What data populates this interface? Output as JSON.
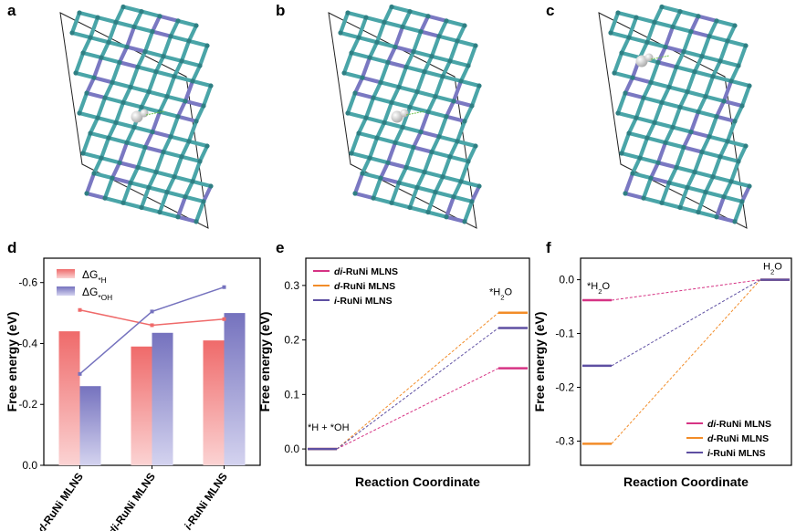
{
  "panels": {
    "a": "a",
    "b": "b",
    "c": "c",
    "d": "d",
    "e": "e",
    "f": "f"
  },
  "colors": {
    "teal": "#4aa5a8",
    "teal_dark": "#2f7f83",
    "purple": "#7a78c2",
    "white_atom": "#e6e6e6",
    "red_bar": "#ef6a6a",
    "blue_bar": "#7572be",
    "pink": "#d63384",
    "orange": "#f28c28",
    "violet": "#5e4fa2"
  },
  "chart_data": [
    {
      "type": "bar",
      "panel": "d",
      "categories": [
        "d-RuNi MLNS",
        "di-RuNi MLNS",
        "i-RuNi MLNS"
      ],
      "category_parts": [
        [
          "d",
          "-RuNi MLNS"
        ],
        [
          "di",
          "-RuNi MLNS"
        ],
        [
          "i",
          "-RuNi MLNS"
        ]
      ],
      "series": [
        {
          "name": "ΔG*H",
          "name_main": "ΔG",
          "name_sub": "*H",
          "values": [
            -0.44,
            -0.39,
            -0.41
          ],
          "line_values": [
            -0.51,
            -0.46,
            -0.48
          ]
        },
        {
          "name": "ΔG*OH",
          "name_main": "ΔG",
          "name_sub": "*OH",
          "values": [
            -0.26,
            -0.435,
            -0.5
          ],
          "line_values": [
            -0.3,
            -0.505,
            -0.585
          ]
        }
      ],
      "ylabel": "Free energy (eV)",
      "ylim": [
        0.0,
        -0.68
      ],
      "yticks": [
        "0.0",
        "-0.2",
        "-0.4",
        "-0.6"
      ],
      "ytick_values": [
        0,
        -0.2,
        -0.4,
        -0.6
      ],
      "legend_position": "top-left"
    },
    {
      "type": "line",
      "panel": "e",
      "xlabel": "Reaction Coordinate",
      "ylabel": "Free energy (eV)",
      "ylim": [
        -0.03,
        0.35
      ],
      "yticks": [
        "0.0",
        "0.1",
        "0.2",
        "0.3"
      ],
      "ytick_values": [
        0,
        0.1,
        0.2,
        0.3
      ],
      "state_labels": {
        "start": "*H + *OH",
        "end_main": "*H",
        "end_sub": "2",
        "end_tail": "O"
      },
      "series": [
        {
          "name": "di-RuNi MLNS",
          "name_italic": "di",
          "name_rest": "-RuNi MLNS",
          "values": [
            0.0,
            0.148
          ],
          "color_key": "pink"
        },
        {
          "name": "d-RuNi MLNS",
          "name_italic": "d",
          "name_rest": "-RuNi MLNS",
          "values": [
            0.0,
            0.25
          ],
          "color_key": "orange"
        },
        {
          "name": "i-RuNi MLNS",
          "name_italic": "i",
          "name_rest": "-RuNi MLNS",
          "values": [
            0.0,
            0.222
          ],
          "color_key": "violet"
        }
      ],
      "legend_position": "top-left"
    },
    {
      "type": "line",
      "panel": "f",
      "xlabel": "Reaction Coordinate",
      "ylabel": "Free energy (eV)",
      "ylim": [
        -0.345,
        0.04
      ],
      "yticks": [
        "0.0",
        "-0.1",
        "-0.2",
        "-0.3"
      ],
      "ytick_values": [
        0,
        -0.1,
        -0.2,
        -0.3
      ],
      "state_labels": {
        "start_main": "*H",
        "start_sub": "2",
        "start_tail": "O",
        "end_main": "H",
        "end_sub": "2",
        "end_tail": "O"
      },
      "series": [
        {
          "name": "di-RuNi MLNS",
          "name_italic": "di",
          "name_rest": "-RuNi MLNS",
          "values": [
            -0.038,
            0.0
          ],
          "color_key": "pink"
        },
        {
          "name": "d-RuNi MLNS",
          "name_italic": "d",
          "name_rest": "-RuNi MLNS",
          "values": [
            -0.305,
            0.0
          ],
          "color_key": "orange"
        },
        {
          "name": "i-RuNi MLNS",
          "name_italic": "i",
          "name_rest": "-RuNi MLNS",
          "values": [
            -0.16,
            0.0
          ],
          "color_key": "violet"
        }
      ],
      "legend_position": "bottom-right"
    }
  ]
}
